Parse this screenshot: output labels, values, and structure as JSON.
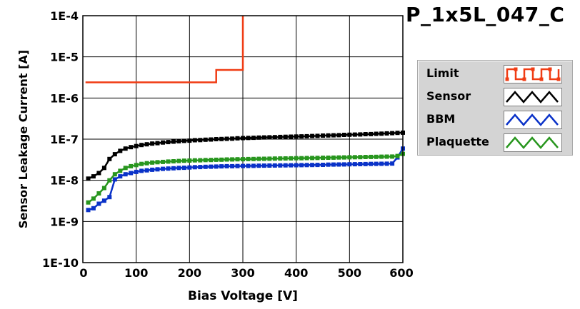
{
  "title": "P_1x5L_047_C",
  "colors": {
    "limit": "#f03c14",
    "sensor": "#000000",
    "bbm": "#0a32c8",
    "plaquette": "#28961e",
    "grid": "#000000",
    "plot_bg": "#ffffff"
  },
  "legend": {
    "items": [
      {
        "label": "Limit",
        "color_key": "limit",
        "pattern": "square"
      },
      {
        "label": "Sensor",
        "color_key": "sensor",
        "pattern": "triangle"
      },
      {
        "label": "BBM",
        "color_key": "bbm",
        "pattern": "triangle"
      },
      {
        "label": "Plaquette",
        "color_key": "plaquette",
        "pattern": "triangle"
      }
    ]
  },
  "chart_data": {
    "type": "line",
    "title": "P_1x5L_047_C",
    "xlabel": "Bias Voltage [V]",
    "ylabel": "Sensor Leakage Current [A]",
    "xlim": [
      0,
      600
    ],
    "ylim": [
      1e-10,
      0.0001
    ],
    "yscale": "log",
    "grid": true,
    "legend_position": "right",
    "x_ticks": [
      0,
      100,
      200,
      300,
      400,
      500,
      600
    ],
    "x_tick_labels": [
      "0",
      "100",
      "200",
      "300",
      "400",
      "500",
      "600"
    ],
    "y_ticks": [
      1e-10,
      1e-09,
      1e-08,
      1e-07,
      1e-06,
      1e-05,
      0.0001
    ],
    "y_tick_labels": [
      "1E-10",
      "1E-9",
      "1E-8",
      "1E-7",
      "1E-6",
      "1E-5",
      "1E-4"
    ],
    "series": [
      {
        "name": "Limit",
        "color_key": "limit",
        "markers": false,
        "step": true,
        "x": [
          5,
          250,
          250,
          255,
          300,
          300
        ],
        "y": [
          2.4e-06,
          2.4e-06,
          4.8e-06,
          4.8e-06,
          4.8e-06,
          0.0001
        ]
      },
      {
        "name": "Sensor",
        "color_key": "sensor",
        "markers": true,
        "x": [
          10,
          20,
          30,
          40,
          50,
          60,
          70,
          80,
          90,
          100,
          110,
          120,
          130,
          140,
          150,
          160,
          170,
          180,
          190,
          200,
          210,
          220,
          230,
          240,
          250,
          260,
          270,
          280,
          290,
          300,
          310,
          320,
          330,
          340,
          350,
          360,
          370,
          380,
          390,
          400,
          410,
          420,
          430,
          440,
          450,
          460,
          470,
          480,
          490,
          500,
          510,
          520,
          530,
          540,
          550,
          560,
          570,
          580,
          590,
          600
        ],
        "y": [
          1.1e-08,
          1.25e-08,
          1.5e-08,
          2e-08,
          3.3e-08,
          4.3e-08,
          5.2e-08,
          5.9e-08,
          6.4e-08,
          6.8e-08,
          7.2e-08,
          7.5e-08,
          7.8e-08,
          8e-08,
          8.3e-08,
          8.5e-08,
          8.7e-08,
          8.9e-08,
          9.1e-08,
          9.2e-08,
          9.4e-08,
          9.5e-08,
          9.7e-08,
          9.8e-08,
          1e-07,
          1.01e-07,
          1.02e-07,
          1.03e-07,
          1.05e-07,
          1.06e-07,
          1.07e-07,
          1.08e-07,
          1.09e-07,
          1.1e-07,
          1.11e-07,
          1.12e-07,
          1.13e-07,
          1.14e-07,
          1.15e-07,
          1.16e-07,
          1.17e-07,
          1.18e-07,
          1.19e-07,
          1.2e-07,
          1.22e-07,
          1.23e-07,
          1.24e-07,
          1.25e-07,
          1.27e-07,
          1.28e-07,
          1.29e-07,
          1.3e-07,
          1.32e-07,
          1.33e-07,
          1.35e-07,
          1.36e-07,
          1.38e-07,
          1.4e-07,
          1.42e-07,
          1.44e-07
        ]
      },
      {
        "name": "BBM",
        "color_key": "bbm",
        "markers": true,
        "x": [
          10,
          20,
          30,
          40,
          50,
          60,
          70,
          80,
          90,
          100,
          110,
          120,
          130,
          140,
          150,
          160,
          170,
          180,
          190,
          200,
          210,
          220,
          230,
          240,
          250,
          260,
          270,
          280,
          290,
          300,
          310,
          320,
          330,
          340,
          350,
          360,
          370,
          380,
          390,
          400,
          410,
          420,
          430,
          440,
          450,
          460,
          470,
          480,
          490,
          500,
          510,
          520,
          530,
          540,
          550,
          560,
          570,
          580,
          590,
          600
        ],
        "y": [
          1.9e-09,
          2.1e-09,
          2.7e-09,
          3.2e-09,
          3.9e-09,
          1.05e-08,
          1.25e-08,
          1.4e-08,
          1.5e-08,
          1.6e-08,
          1.7e-08,
          1.75e-08,
          1.8e-08,
          1.85e-08,
          1.9e-08,
          1.93e-08,
          1.96e-08,
          2e-08,
          2.02e-08,
          2.05e-08,
          2.08e-08,
          2.1e-08,
          2.12e-08,
          2.14e-08,
          2.16e-08,
          2.18e-08,
          2.2e-08,
          2.2e-08,
          2.22e-08,
          2.23e-08,
          2.24e-08,
          2.25e-08,
          2.26e-08,
          2.27e-08,
          2.28e-08,
          2.29e-08,
          2.3e-08,
          2.31e-08,
          2.32e-08,
          2.33e-08,
          2.34e-08,
          2.35e-08,
          2.36e-08,
          2.37e-08,
          2.38e-08,
          2.4e-08,
          2.41e-08,
          2.42e-08,
          2.43e-08,
          2.45e-08,
          2.46e-08,
          2.47e-08,
          2.48e-08,
          2.5e-08,
          2.51e-08,
          2.52e-08,
          2.53e-08,
          2.55e-08,
          3.6e-08,
          5.9e-08
        ]
      },
      {
        "name": "Plaquette",
        "color_key": "plaquette",
        "markers": true,
        "x": [
          10,
          20,
          30,
          40,
          50,
          60,
          70,
          80,
          90,
          100,
          110,
          120,
          130,
          140,
          150,
          160,
          170,
          180,
          190,
          200,
          210,
          220,
          230,
          240,
          250,
          260,
          270,
          280,
          290,
          300,
          310,
          320,
          330,
          340,
          350,
          360,
          370,
          380,
          390,
          400,
          410,
          420,
          430,
          440,
          450,
          460,
          470,
          480,
          490,
          500,
          510,
          520,
          530,
          540,
          550,
          560,
          570,
          580,
          590,
          600
        ],
        "y": [
          2.9e-09,
          3.6e-09,
          4.8e-09,
          6.5e-09,
          1e-08,
          1.4e-08,
          1.7e-08,
          2e-08,
          2.2e-08,
          2.35e-08,
          2.5e-08,
          2.6e-08,
          2.7e-08,
          2.75e-08,
          2.8e-08,
          2.85e-08,
          2.9e-08,
          2.95e-08,
          3e-08,
          3.02e-08,
          3.05e-08,
          3.07e-08,
          3.1e-08,
          3.12e-08,
          3.15e-08,
          3.17e-08,
          3.2e-08,
          3.22e-08,
          3.24e-08,
          3.26e-08,
          3.28e-08,
          3.3e-08,
          3.32e-08,
          3.34e-08,
          3.35e-08,
          3.37e-08,
          3.39e-08,
          3.4e-08,
          3.42e-08,
          3.44e-08,
          3.45e-08,
          3.47e-08,
          3.49e-08,
          3.5e-08,
          3.52e-08,
          3.54e-08,
          3.56e-08,
          3.58e-08,
          3.6e-08,
          3.62e-08,
          3.64e-08,
          3.66e-08,
          3.68e-08,
          3.7e-08,
          3.72e-08,
          3.74e-08,
          3.76e-08,
          3.78e-08,
          3.9e-08,
          4.4e-08
        ]
      }
    ]
  }
}
